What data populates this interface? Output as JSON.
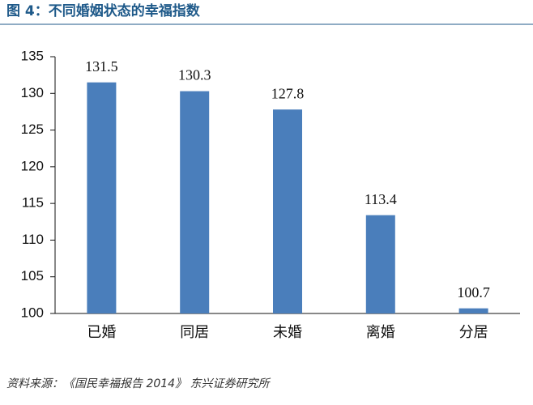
{
  "chart_data": {
    "type": "bar",
    "title": "图 4：不同婚姻状态的幸福指数",
    "categories": [
      "已婚",
      "同居",
      "未婚",
      "离婚",
      "分居"
    ],
    "values": [
      131.5,
      130.3,
      127.8,
      113.4,
      100.7
    ],
    "color": "#4a7ebb",
    "ylim": [
      100,
      135
    ],
    "yticks": [
      100,
      105,
      110,
      115,
      120,
      125,
      130,
      135
    ],
    "grid": false,
    "source": "资料来源：《国民幸福报告 2014》 东兴证券研究所"
  }
}
